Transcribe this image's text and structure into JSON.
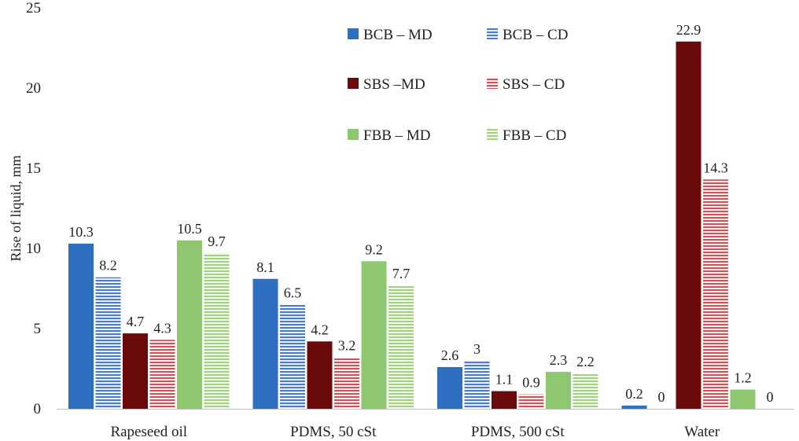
{
  "chart_data": {
    "type": "bar",
    "title": "",
    "xlabel": "",
    "ylabel": "Rise of liquid, mm",
    "ylim": [
      0,
      25
    ],
    "yticks": [
      0,
      5,
      10,
      15,
      20,
      25
    ],
    "grid": false,
    "legend_position": "top-center",
    "categories": [
      "Rapeseed oil",
      "PDMS, 50 cSt",
      "PDMS, 500 cSt",
      "Water"
    ],
    "series": [
      {
        "name": "BCB – MD",
        "color": "#2f6fc0",
        "pattern": "solid",
        "values": [
          10.3,
          8.1,
          2.6,
          0.2
        ],
        "labels": [
          "10.3",
          "8.1",
          "2.6",
          "0.2"
        ]
      },
      {
        "name": "BCB – CD",
        "color": "#4a7cc9",
        "pattern": "striped",
        "values": [
          8.2,
          6.5,
          3,
          0
        ],
        "labels": [
          "8.2",
          "6.5",
          "3",
          "0"
        ]
      },
      {
        "name": "SBS –MD",
        "color": "#6b0a0a",
        "pattern": "solid",
        "values": [
          4.7,
          4.2,
          1.1,
          22.9
        ],
        "labels": [
          "4.7",
          "4.2",
          "1.1",
          "22.9"
        ]
      },
      {
        "name": "SBS – CD",
        "color": "#c9555a",
        "pattern": "striped",
        "values": [
          4.3,
          3.2,
          0.9,
          14.3
        ],
        "labels": [
          "4.3",
          "3.2",
          "0.9",
          "14.3"
        ]
      },
      {
        "name": "FBB –  MD",
        "color": "#8ec76f",
        "pattern": "solid",
        "values": [
          10.5,
          9.2,
          2.3,
          1.2
        ],
        "labels": [
          "10.5",
          "9.2",
          "2.3",
          "1.2"
        ]
      },
      {
        "name": "FBB –   CD",
        "color": "#9fd17f",
        "pattern": "striped",
        "values": [
          9.7,
          7.7,
          2.2,
          0
        ],
        "labels": [
          "9.7",
          "7.7",
          "2.2",
          "0"
        ]
      }
    ]
  }
}
